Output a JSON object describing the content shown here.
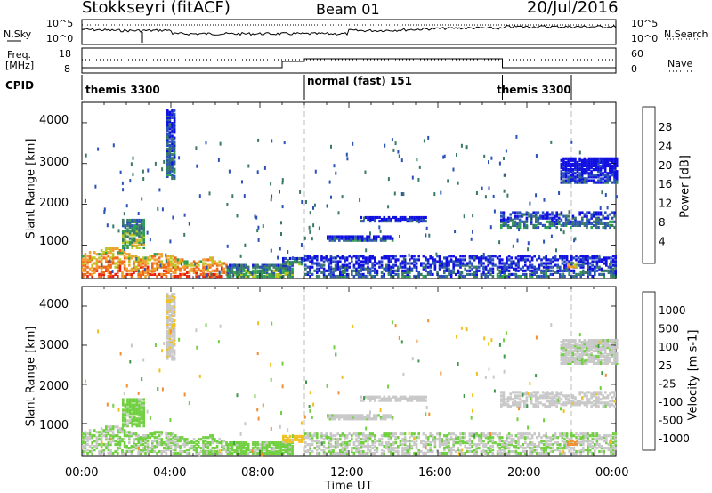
{
  "header": {
    "station": "Stokkseyri (fitACF)",
    "beam": "Beam 01",
    "date": "20/Jul/2016"
  },
  "noise_panel": {
    "left_label": "N.Sky",
    "right_label": "N.Search",
    "left_ticks": [
      "10^5",
      "10^0"
    ],
    "right_ticks": [
      "10^5",
      "10^0"
    ]
  },
  "freq_panel": {
    "left_label_1": "Freq.",
    "left_label_2": "[MHz]",
    "right_label": "Nave",
    "left_ticks": [
      "18",
      "8"
    ],
    "right_ticks": [
      "60",
      "0"
    ]
  },
  "cpid_panel": {
    "label": "CPID",
    "segments": [
      {
        "name": "themis 3300",
        "start_h": 0,
        "end_h": 10
      },
      {
        "name": "normal (fast) 151",
        "start_h": 10,
        "end_h": 18.9
      },
      {
        "name": "themis 3300",
        "start_h": 18.9,
        "end_h": 22
      }
    ]
  },
  "power_panel": {
    "ylabel": "Slant Range [km]",
    "yticks": [
      "4000",
      "3000",
      "2000",
      "1000"
    ],
    "colorbar_label": "Power [dB]",
    "colorbar_ticks": [
      "28",
      "24",
      "20",
      "16",
      "12",
      "8",
      "4"
    ],
    "colors": [
      "#1010e0",
      "#2a52b8",
      "#3a7868",
      "#2f9f50",
      "#b8c820",
      "#f0a030",
      "#f06818",
      "#e82010"
    ]
  },
  "velocity_panel": {
    "ylabel": "Slant Range [km]",
    "yticks": [
      "4000",
      "3000",
      "2000",
      "1000"
    ],
    "colorbar_label": "Velocity [m s-1]",
    "colorbar_ticks": [
      "1000",
      "500",
      "100",
      "25",
      "-25",
      "-100",
      "-500",
      "-1000"
    ],
    "colors": [
      "#2038c8",
      "#2a7a9a",
      "#3f9848",
      "#70d040",
      "#c8c8c8",
      "#f0c020",
      "#f09030",
      "#e85020",
      "#e01010"
    ]
  },
  "xaxis": {
    "label": "Time UT",
    "ticks": [
      "00:00",
      "04:00",
      "08:00",
      "12:00",
      "16:00",
      "20:00",
      "00:00"
    ]
  },
  "chart_data": {
    "type": "heatmap",
    "title": "Stokkseyri (fitACF)",
    "xlabel": "Time UT",
    "ylabel": "Slant Range [km]",
    "xlim_hours": [
      0,
      24
    ],
    "ylim_km": [
      180,
      4500
    ],
    "echo_regions": [
      {
        "t0": 0,
        "t1": 6.5,
        "r0": 200,
        "r1": 900,
        "power": 26,
        "velocity": 30
      },
      {
        "t0": 6.5,
        "t1": 9.5,
        "r0": 200,
        "r1": 500,
        "power": 14,
        "velocity": 40
      },
      {
        "t0": 9.0,
        "t1": 10.0,
        "r0": 500,
        "r1": 650,
        "power": 12,
        "velocity": -60
      },
      {
        "t0": 1.8,
        "t1": 2.8,
        "r0": 900,
        "r1": 1600,
        "power": 16,
        "velocity": 50
      },
      {
        "t0": 3.8,
        "t1": 4.2,
        "r0": 2600,
        "r1": 4300,
        "power": 10,
        "velocity": -20
      },
      {
        "t0": 10.0,
        "t1": 24,
        "r0": 200,
        "r1": 700,
        "power": 8,
        "velocity": 20
      },
      {
        "t0": 11.0,
        "t1": 14.0,
        "r0": 1080,
        "r1": 1180,
        "power": 8,
        "velocity": 10
      },
      {
        "t0": 12.5,
        "t1": 15.5,
        "r0": 1550,
        "r1": 1650,
        "power": 6,
        "velocity": 0
      },
      {
        "t0": 18.8,
        "t1": 24,
        "r0": 1400,
        "r1": 1800,
        "power": 10,
        "velocity": -5
      },
      {
        "t0": 21.5,
        "t1": 24,
        "r0": 2500,
        "r1": 3100,
        "power": 5,
        "velocity": 10
      },
      {
        "t0": 21.8,
        "t1": 22.3,
        "r0": 430,
        "r1": 560,
        "power": 20,
        "velocity": -300
      }
    ]
  }
}
